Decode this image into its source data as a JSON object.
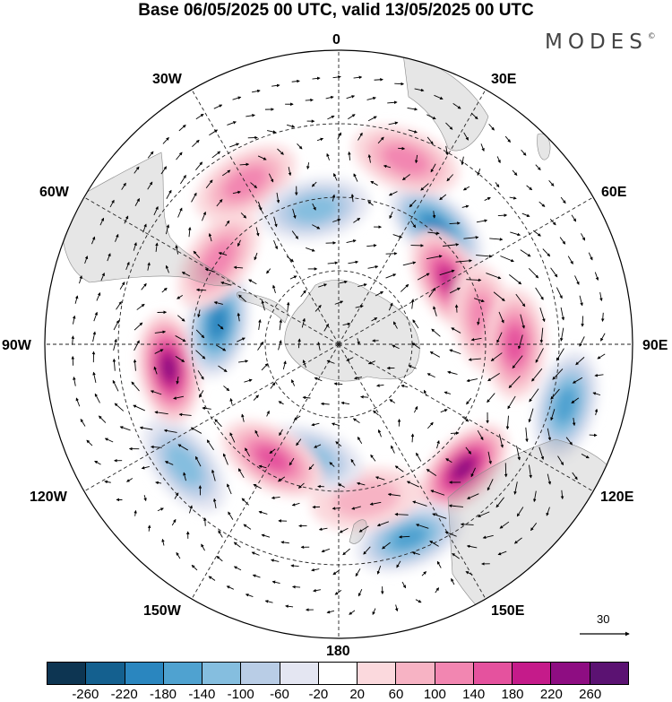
{
  "title": "Base 06/05/2025 00 UTC, valid 13/05/2025 00 UTC",
  "brand": "MODES",
  "brand_mark": "©",
  "longitude_labels": {
    "lon_0": "0",
    "lon_30E": "30E",
    "lon_60E": "60E",
    "lon_90E": "90E",
    "lon_120E": "120E",
    "lon_150E": "150E",
    "lon_180": "180",
    "lon_150W": "150W",
    "lon_120W": "120W",
    "lon_90W": "90W",
    "lon_60W": "60W",
    "lon_30W": "30W"
  },
  "vector_scale_label": "30",
  "colorbar": {
    "colors": [
      "#0d3552",
      "#14608f",
      "#2a86bf",
      "#4fa2d0",
      "#85bedf",
      "#b9cde6",
      "#e4e6f2",
      "#ffffff",
      "#fbd9dd",
      "#f7b3c4",
      "#f286b1",
      "#e5529e",
      "#c51b8a",
      "#8e0d82",
      "#5b1272"
    ],
    "ticks": [
      "-260",
      "-220",
      "-180",
      "-140",
      "-100",
      "-60",
      "-20",
      "20",
      "60",
      "100",
      "140",
      "180",
      "220",
      "260"
    ]
  },
  "anomaly_centers": [
    {
      "lon": 105,
      "colat": 48,
      "value": -160
    },
    {
      "lon": 135,
      "colat": 36,
      "value": 220
    },
    {
      "lon": 160,
      "colat": 42,
      "value": -150
    },
    {
      "lon": 170,
      "colat": 32,
      "value": 80
    },
    {
      "lon": 195,
      "colat": 24,
      "value": -130
    },
    {
      "lon": 210,
      "colat": 27,
      "value": 150
    },
    {
      "lon": 232,
      "colat": 40,
      "value": -120
    },
    {
      "lon": 262,
      "colat": 35,
      "value": 220
    },
    {
      "lon": 280,
      "colat": 25,
      "value": -200
    },
    {
      "lon": 305,
      "colat": 30,
      "value": 110
    },
    {
      "lon": 330,
      "colat": 38,
      "value": 100
    },
    {
      "lon": 40,
      "colat": 31,
      "value": -200
    },
    {
      "lon": 60,
      "colat": 26,
      "value": 210
    },
    {
      "lon": 80,
      "colat": 30,
      "value": 130
    },
    {
      "lon": 90,
      "colat": 36,
      "value": 150
    },
    {
      "lon": 350,
      "colat": 28,
      "value": -120
    },
    {
      "lon": 20,
      "colat": 40,
      "value": 120
    }
  ]
}
